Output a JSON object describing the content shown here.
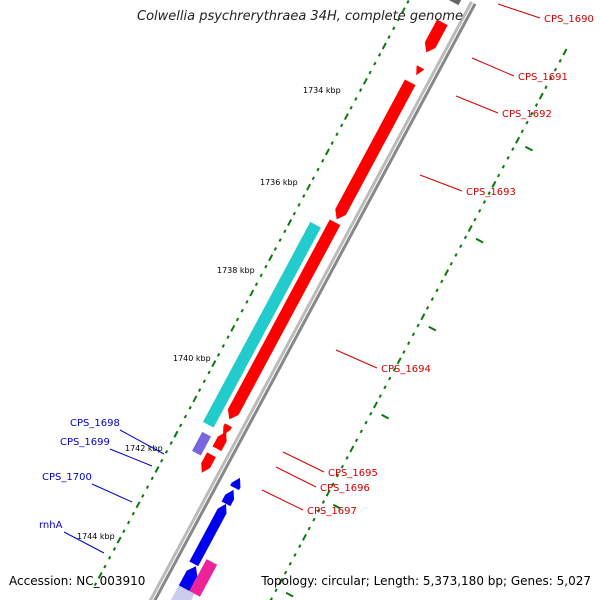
{
  "title": "Colwellia psychrerythraea 34H, complete genome",
  "accession": "Accession: NC_003910",
  "summary": "Topology: circular; Length: 5,373,180 bp; Genes: 5,027",
  "ticks": [
    "1734 kbp",
    "1736 kbp",
    "1738 kbp",
    "1740 kbp",
    "1742 kbp",
    "1744 kbp"
  ],
  "genes": [
    {
      "name": "CPS_1690",
      "color": "#d40000",
      "strand": "+"
    },
    {
      "name": "CPS_1691",
      "color": "#d40000",
      "strand": "+"
    },
    {
      "name": "CPS_1692",
      "color": "#d40000",
      "strand": "+"
    },
    {
      "name": "CPS_1693",
      "color": "#d40000",
      "strand": "+"
    },
    {
      "name": "CPS_1694",
      "color": "#d40000",
      "strand": "+"
    },
    {
      "name": "CPS_1695",
      "color": "#d40000",
      "strand": "+"
    },
    {
      "name": "CPS_1696",
      "color": "#d40000",
      "strand": "+"
    },
    {
      "name": "CPS_1697",
      "color": "#d40000",
      "strand": "+"
    },
    {
      "name": "CPS_1698",
      "color": "#0000cc",
      "strand": "-"
    },
    {
      "name": "CPS_1699",
      "color": "#0000cc",
      "strand": "-"
    },
    {
      "name": "CPS_1700",
      "color": "#0000cc",
      "strand": "-"
    },
    {
      "name": "rnhA",
      "color": "#0000cc",
      "strand": "-"
    }
  ],
  "colors": {
    "forward_cds": "#ff0000",
    "reverse_cds": "#0000ee",
    "cyan_feature": "#22cccc",
    "purple_feature": "#7766dd",
    "pink_feature": "#ee2299",
    "gc_dots": "#0a7a0a",
    "backbone": "#888888"
  }
}
